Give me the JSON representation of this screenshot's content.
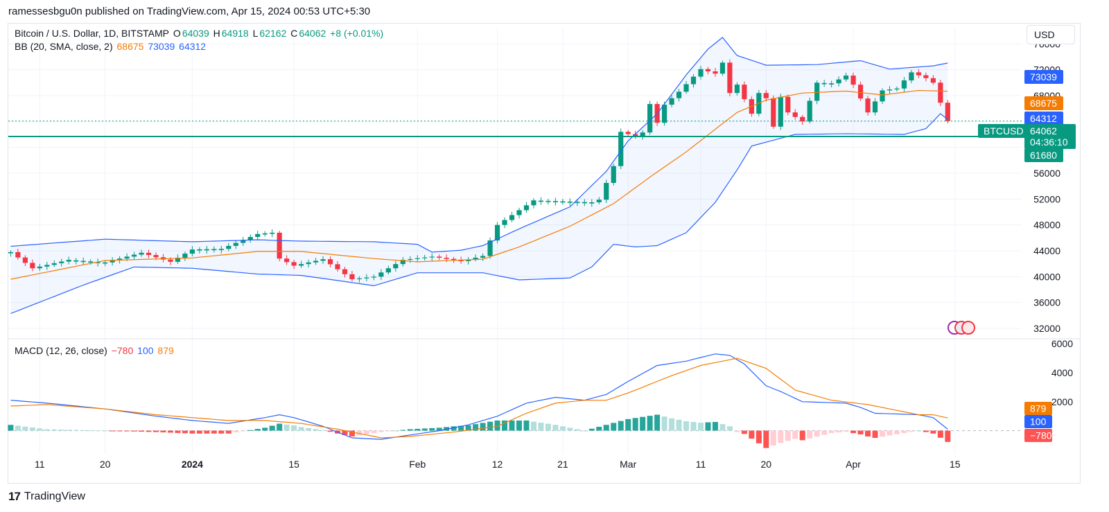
{
  "header": {
    "published": "ramessesbgu0n published on TradingView.com, Apr 15, 2024 00:53 UTC+5:30"
  },
  "legend": {
    "symbol": "Bitcoin / U.S. Dollar, 1D, BITSTAMP",
    "open_label": "O",
    "open": "64039",
    "high_label": "H",
    "high": "64918",
    "low_label": "L",
    "low": "62162",
    "close_label": "C",
    "close": "64062",
    "change": "+8 (+0.01%)",
    "bb_label": "BB (20, SMA, close, 2)",
    "bb_basis": "68675",
    "bb_upper": "73039",
    "bb_lower": "64312",
    "macd_label": "MACD (12, 26, close)",
    "macd_hist": "−780",
    "macd_line": "100",
    "macd_signal": "879"
  },
  "currency": "USD",
  "brand": {
    "logo": "17",
    "name": "TradingView"
  },
  "colors": {
    "up": "#089981",
    "down": "#f23645",
    "bb_basis": "#f57c00",
    "bb_band": "#2962ff",
    "macd_line": "#2962ff",
    "signal": "#f57c00",
    "hline": "#089981"
  },
  "chart_data": [
    {
      "type": "candlestick",
      "title": "Bitcoin / U.S. Dollar, 1D, BITSTAMP",
      "ylim": [
        30500,
        78500
      ],
      "y_ticks": [
        32000,
        36000,
        40000,
        44000,
        48000,
        52000,
        56000,
        60000,
        64000,
        68000,
        72000,
        76000
      ],
      "x_ticks": [
        "11",
        "20",
        "2024",
        "15",
        "Feb",
        "12",
        "21",
        "Mar",
        "11",
        "20",
        "Apr",
        "15"
      ],
      "x_tick_days": [
        -21,
        -12,
        0,
        14,
        31,
        42,
        51,
        60,
        70,
        79,
        91,
        105
      ],
      "day0": "2024-01-01",
      "last_day": 104,
      "price_labels": [
        {
          "text": "73039",
          "value": 73039,
          "kind": "bb_upper"
        },
        {
          "text": "68675",
          "value": 68675,
          "kind": "bb_basis"
        },
        {
          "text": "64312",
          "value": 64312,
          "kind": "bb_lower"
        },
        {
          "text": "64062",
          "value": 64062,
          "kind": "price",
          "countdown": "04:36:10",
          "tag": "BTCUSD"
        },
        {
          "text": "61680",
          "value": 61680,
          "kind": "hline"
        }
      ],
      "horizontal_line": 61680,
      "candle_keypoints": [
        [
          -25,
          43800
        ],
        [
          -22,
          41300
        ],
        [
          -17,
          42600
        ],
        [
          -12,
          42200
        ],
        [
          -7,
          43700
        ],
        [
          -3,
          42300
        ],
        [
          0,
          44200
        ],
        [
          4,
          44300
        ],
        [
          9,
          46600
        ],
        [
          11,
          46800
        ],
        [
          12,
          42800
        ],
        [
          14,
          41700
        ],
        [
          18,
          42700
        ],
        [
          22,
          39600
        ],
        [
          25,
          40000
        ],
        [
          29,
          42600
        ],
        [
          33,
          43100
        ],
        [
          37,
          42400
        ],
        [
          40,
          43200
        ],
        [
          42,
          48000
        ],
        [
          47,
          51800
        ],
        [
          55,
          51500
        ],
        [
          56,
          51900
        ],
        [
          57,
          54500
        ],
        [
          58,
          57100
        ],
        [
          59,
          62400
        ],
        [
          61,
          61700
        ],
        [
          62,
          62300
        ],
        [
          63,
          66700
        ],
        [
          64,
          63800
        ],
        [
          65,
          66600
        ],
        [
          67,
          68600
        ],
        [
          70,
          72100
        ],
        [
          72,
          71400
        ],
        [
          73,
          73100
        ],
        [
          74,
          68400
        ],
        [
          75,
          69700
        ],
        [
          77,
          65200
        ],
        [
          78,
          68400
        ],
        [
          79,
          67600
        ],
        [
          80,
          63200
        ],
        [
          81,
          67800
        ],
        [
          82,
          65400
        ],
        [
          84,
          64000
        ],
        [
          85,
          67200
        ],
        [
          86,
          70000
        ],
        [
          88,
          69900
        ],
        [
          90,
          71100
        ],
        [
          91,
          69700
        ],
        [
          93,
          65400
        ],
        [
          95,
          68800
        ],
        [
          97,
          69100
        ],
        [
          99,
          71600
        ],
        [
          101,
          70700
        ],
        [
          102,
          70000
        ],
        [
          103,
          66900
        ],
        [
          104,
          64062
        ]
      ],
      "bb_basis_keypoints": [
        [
          -25,
          39600
        ],
        [
          -12,
          42500
        ],
        [
          0,
          42900
        ],
        [
          9,
          43900
        ],
        [
          15,
          43900
        ],
        [
          25,
          42800
        ],
        [
          31,
          42300
        ],
        [
          40,
          42700
        ],
        [
          45,
          44600
        ],
        [
          52,
          47800
        ],
        [
          58,
          51300
        ],
        [
          63,
          55400
        ],
        [
          68,
          59300
        ],
        [
          72,
          62800
        ],
        [
          75,
          65400
        ],
        [
          79,
          67300
        ],
        [
          84,
          68400
        ],
        [
          90,
          68700
        ],
        [
          95,
          68100
        ],
        [
          100,
          68800
        ],
        [
          104,
          68675
        ]
      ],
      "bb_upper_keypoints": [
        [
          -25,
          44700
        ],
        [
          -12,
          45800
        ],
        [
          0,
          45400
        ],
        [
          9,
          45700
        ],
        [
          15,
          45500
        ],
        [
          25,
          45400
        ],
        [
          31,
          45000
        ],
        [
          33,
          43800
        ],
        [
          37,
          44100
        ],
        [
          40,
          44800
        ],
        [
          45,
          47400
        ],
        [
          52,
          50800
        ],
        [
          57,
          56300
        ],
        [
          60,
          61000
        ],
        [
          64,
          65200
        ],
        [
          68,
          71200
        ],
        [
          71,
          75200
        ],
        [
          73,
          77000
        ],
        [
          75,
          74200
        ],
        [
          79,
          72700
        ],
        [
          86,
          72800
        ],
        [
          92,
          73400
        ],
        [
          96,
          72100
        ],
        [
          102,
          72600
        ],
        [
          104,
          73039
        ]
      ],
      "bb_lower_keypoints": [
        [
          -25,
          34300
        ],
        [
          -15,
          38700
        ],
        [
          -8,
          41500
        ],
        [
          0,
          41300
        ],
        [
          9,
          40400
        ],
        [
          15,
          40200
        ],
        [
          25,
          38600
        ],
        [
          31,
          40600
        ],
        [
          40,
          40600
        ],
        [
          45,
          39500
        ],
        [
          52,
          39800
        ],
        [
          55,
          41500
        ],
        [
          58,
          45000
        ],
        [
          61,
          44600
        ],
        [
          64,
          44800
        ],
        [
          68,
          46800
        ],
        [
          72,
          51500
        ],
        [
          75,
          56500
        ],
        [
          77,
          60200
        ],
        [
          79,
          60800
        ],
        [
          83,
          62000
        ],
        [
          90,
          62100
        ],
        [
          98,
          62000
        ],
        [
          101,
          62900
        ],
        [
          103,
          65200
        ],
        [
          104,
          64312
        ]
      ]
    },
    {
      "type": "macd",
      "title": "MACD (12, 26, close)",
      "ylim": [
        -1600,
        6200
      ],
      "y_ticks": [
        2000,
        4000,
        6000
      ],
      "value_labels": [
        {
          "text": "879",
          "value": 879,
          "kind": "signal"
        },
        {
          "text": "100",
          "value": 100,
          "kind": "macd_line"
        },
        {
          "text": "−780",
          "value": -780,
          "kind": "hist"
        }
      ],
      "macd_keypoints": [
        [
          -25,
          2100
        ],
        [
          -20,
          1900
        ],
        [
          -12,
          1500
        ],
        [
          -5,
          1000
        ],
        [
          0,
          700
        ],
        [
          5,
          500
        ],
        [
          10,
          900
        ],
        [
          12,
          1100
        ],
        [
          14,
          900
        ],
        [
          18,
          300
        ],
        [
          22,
          -500
        ],
        [
          26,
          -600
        ],
        [
          30,
          -300
        ],
        [
          34,
          0
        ],
        [
          38,
          400
        ],
        [
          42,
          1000
        ],
        [
          46,
          1900
        ],
        [
          50,
          2300
        ],
        [
          54,
          2100
        ],
        [
          57,
          2500
        ],
        [
          60,
          3400
        ],
        [
          64,
          4500
        ],
        [
          68,
          4800
        ],
        [
          72,
          5300
        ],
        [
          74,
          5200
        ],
        [
          76,
          4600
        ],
        [
          79,
          3100
        ],
        [
          81,
          2700
        ],
        [
          84,
          2000
        ],
        [
          90,
          1900
        ],
        [
          92,
          1600
        ],
        [
          94,
          1200
        ],
        [
          100,
          1100
        ],
        [
          102,
          900
        ],
        [
          104,
          100
        ]
      ],
      "signal_keypoints": [
        [
          -25,
          1700
        ],
        [
          -20,
          1800
        ],
        [
          -12,
          1500
        ],
        [
          -5,
          1100
        ],
        [
          0,
          900
        ],
        [
          5,
          700
        ],
        [
          10,
          700
        ],
        [
          15,
          500
        ],
        [
          20,
          100
        ],
        [
          26,
          -500
        ],
        [
          30,
          -400
        ],
        [
          36,
          -100
        ],
        [
          42,
          300
        ],
        [
          46,
          1200
        ],
        [
          50,
          1900
        ],
        [
          54,
          2100
        ],
        [
          57,
          2100
        ],
        [
          60,
          2600
        ],
        [
          66,
          3800
        ],
        [
          70,
          4500
        ],
        [
          75,
          5000
        ],
        [
          79,
          4300
        ],
        [
          83,
          2800
        ],
        [
          88,
          2100
        ],
        [
          93,
          1800
        ],
        [
          100,
          1100
        ],
        [
          102,
          1100
        ],
        [
          104,
          879
        ]
      ]
    }
  ]
}
